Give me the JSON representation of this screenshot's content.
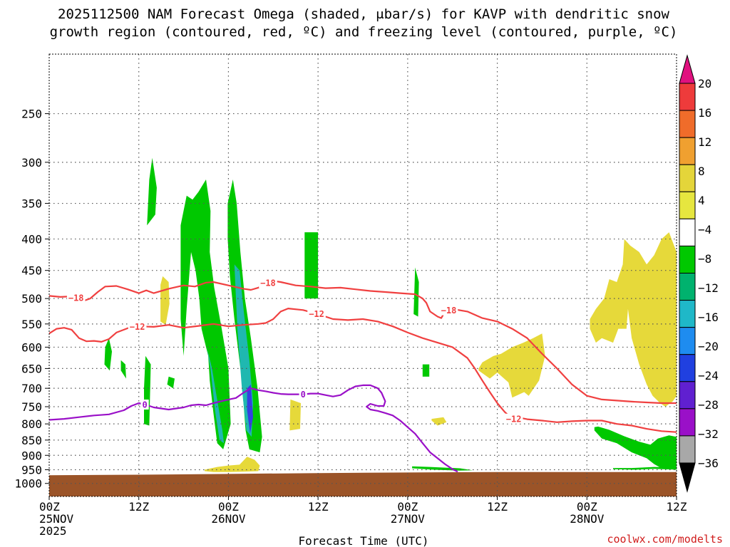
{
  "title_line1": "2025112500 NAM Forecast Omega (shaded, μbar/s) for KAVP with dendritic snow",
  "title_line2": "growth region (contoured, red, ºC) and freezing level (contoured, purple, ºC)",
  "xlabel": "Forecast Time (UTC)",
  "credit": "coolwx.com/modelts",
  "chart_data": {
    "type": "heatmap",
    "y_axis": {
      "label": "",
      "unit": "hPa",
      "inverted": true,
      "scale": "log",
      "ticks": [
        250,
        300,
        350,
        400,
        450,
        500,
        550,
        600,
        650,
        700,
        750,
        800,
        850,
        900,
        950,
        1000
      ],
      "range": [
        1050,
        200
      ]
    },
    "x_axis": {
      "unit": "hours since 2025-11-25 00Z",
      "range": [
        0,
        84
      ],
      "ticks": [
        {
          "h": 0,
          "lines": [
            "00Z",
            "25NOV",
            "2025"
          ]
        },
        {
          "h": 12,
          "lines": [
            "12Z"
          ]
        },
        {
          "h": 24,
          "lines": [
            "00Z",
            "26NOV"
          ]
        },
        {
          "h": 36,
          "lines": [
            "12Z"
          ]
        },
        {
          "h": 48,
          "lines": [
            "00Z",
            "27NOV"
          ]
        },
        {
          "h": 60,
          "lines": [
            "12Z"
          ]
        },
        {
          "h": 72,
          "lines": [
            "00Z",
            "28NOV"
          ]
        },
        {
          "h": 84,
          "lines": [
            "12Z"
          ]
        }
      ]
    },
    "grid": true,
    "colorbar": {
      "labels": [
        "20",
        "16",
        "12",
        "8",
        "4",
        "−4",
        "−8",
        "−12",
        "−16",
        "−20",
        "−24",
        "−28",
        "−32",
        "−36"
      ],
      "colors": [
        "#e0117f",
        "#ee3b3b",
        "#f06c2a",
        "#f0a030",
        "#e4d53a",
        "#e6e63f",
        "#ffffff",
        "#00c800",
        "#00b26e",
        "#1fb8c8",
        "#1e8cf0",
        "#2040e0",
        "#6020d0",
        "#9a10c8",
        "#a8a8a8",
        "#000000"
      ]
    },
    "contours": [
      {
        "name": "−18",
        "color": "#f04040",
        "label_h": [
          3.6,
          29.3,
          53.5
        ],
        "h": [
          0,
          1.5,
          3,
          4,
          4.5,
          5.5,
          6.5,
          7.5,
          9,
          10.5,
          12,
          13,
          14,
          16,
          18,
          19.5,
          21,
          22,
          24,
          26,
          27,
          28,
          29,
          30,
          31,
          33,
          35,
          37,
          39,
          41,
          43,
          45,
          47,
          49,
          50,
          50.5,
          51,
          52,
          52.5,
          53,
          54,
          56,
          58,
          60,
          62,
          64,
          66,
          68,
          70,
          72,
          74,
          76,
          78,
          80,
          82,
          84
        ],
        "p": [
          495,
          497,
          496,
          500,
          505,
          500,
          488,
          478,
          477,
          483,
          490,
          485,
          490,
          482,
          476,
          478,
          471,
          470,
          476,
          482,
          484,
          480,
          473,
          468,
          470,
          476,
          478,
          481,
          480,
          483,
          486,
          488,
          490,
          492,
          500,
          508,
          525,
          535,
          538,
          525,
          520,
          525,
          538,
          545,
          560,
          580,
          615,
          650,
          690,
          720,
          730,
          733,
          736,
          738,
          740,
          740
        ]
      },
      {
        "name": "−12",
        "color": "#f04040",
        "label_h": [
          11.8,
          35.8,
          62.2
        ],
        "h": [
          0,
          1,
          2,
          3,
          4,
          5,
          6,
          7,
          8,
          9,
          10,
          11,
          12,
          14,
          16,
          18,
          20,
          22,
          24,
          26,
          28,
          29,
          30,
          31,
          32,
          34,
          36,
          38,
          40,
          42,
          44,
          46,
          48,
          50,
          52,
          54,
          56,
          57,
          58,
          59,
          60,
          61,
          62,
          63,
          64,
          66,
          68,
          70,
          72,
          74,
          76,
          78,
          80,
          82,
          84
        ],
        "p": [
          570,
          560,
          558,
          562,
          580,
          587,
          586,
          588,
          582,
          568,
          562,
          556,
          555,
          556,
          552,
          558,
          554,
          550,
          555,
          552,
          550,
          548,
          540,
          525,
          519,
          522,
          530,
          540,
          542,
          540,
          545,
          555,
          568,
          580,
          590,
          600,
          625,
          650,
          680,
          710,
          740,
          765,
          785,
          782,
          786,
          790,
          795,
          792,
          790,
          790,
          800,
          805,
          815,
          822,
          825
        ]
      }
    ],
    "freezing_level": {
      "name": "0",
      "color": "#9a10c8",
      "label_h": [
        12.8,
        34
      ],
      "h": [
        0,
        2,
        4,
        6,
        8,
        10,
        11,
        12,
        13,
        14,
        15,
        16,
        17,
        18,
        19,
        20,
        21,
        22,
        23,
        24,
        25,
        26,
        27,
        28,
        29,
        30,
        31,
        32,
        33,
        34,
        35,
        36,
        37,
        38,
        39,
        40,
        41,
        42,
        43,
        44,
        44.5,
        45,
        44.8,
        44,
        43,
        42.5,
        43,
        44,
        45,
        46,
        47,
        48,
        49,
        50,
        51,
        52,
        53,
        54,
        54.7
      ],
      "p": [
        788,
        785,
        780,
        775,
        772,
        760,
        748,
        740,
        745,
        752,
        755,
        758,
        755,
        752,
        746,
        744,
        746,
        740,
        735,
        730,
        726,
        712,
        700,
        705,
        708,
        712,
        715,
        716,
        716,
        716,
        714,
        714,
        718,
        722,
        718,
        705,
        695,
        692,
        692,
        700,
        712,
        735,
        748,
        748,
        742,
        750,
        758,
        762,
        768,
        775,
        790,
        810,
        830,
        860,
        890,
        910,
        930,
        948,
        957
      ]
    },
    "omega_regions": [
      {
        "level": "-4 to -8",
        "h": [
          13.1,
          14.2,
          14.4,
          13.8,
          13.4
        ],
        "p": [
          380,
          365,
          330,
          295,
          320
        ]
      },
      {
        "level": "4 to 8",
        "h": [
          14.9,
          15.6,
          16.1,
          16.0,
          15.2,
          14.9
        ],
        "p": [
          545,
          552,
          510,
          470,
          460,
          475
        ]
      },
      {
        "level": "-4 to -8",
        "h": [
          7.4,
          8.1,
          8.4,
          8.0,
          7.5
        ],
        "p": [
          640,
          655,
          610,
          580,
          600
        ]
      },
      {
        "level": "-4 to -8",
        "h": [
          9.6,
          10.3,
          10.2,
          9.6
        ],
        "p": [
          655,
          675,
          640,
          630
        ]
      },
      {
        "level": "-4 to -8",
        "h": [
          12.7,
          13.4,
          13.6,
          12.9,
          12.7
        ],
        "p": [
          800,
          805,
          640,
          620,
          700
        ]
      },
      {
        "level": "-4 to -8",
        "h": [
          15.8,
          16.6,
          16.8,
          16.0
        ],
        "p": [
          690,
          700,
          675,
          670
        ]
      },
      {
        "level": "-4 to -8",
        "h": [
          17.6,
          18.4,
          19.2,
          20.0,
          21.0,
          21.6,
          21.5,
          22.1,
          23.1,
          24.0,
          24.3,
          23.3,
          22.5,
          22.0,
          21.5,
          21.3,
          20.7,
          20.4,
          20.1,
          19.6,
          19.0,
          18.4,
          18.0,
          17.6
        ],
        "p": [
          380,
          340,
          345,
          335,
          320,
          360,
          420,
          480,
          560,
          650,
          800,
          880,
          860,
          770,
          680,
          620,
          580,
          560,
          500,
          450,
          420,
          520,
          620,
          540
        ]
      },
      {
        "level": "-8 to -16",
        "h": [
          21.1,
          21.8,
          22.4,
          23.2,
          23.4,
          22.8,
          22.2,
          21.6
        ],
        "p": [
          600,
          650,
          720,
          820,
          860,
          850,
          760,
          650
        ]
      },
      {
        "level": "-4 to -8",
        "h": [
          23.9,
          24.6,
          25.1,
          25.6,
          26.2,
          27.0,
          27.9,
          28.5,
          28.2,
          26.8,
          26.3,
          25.8,
          25.4,
          24.8,
          24.2,
          23.9
        ],
        "p": [
          350,
          320,
          350,
          420,
          500,
          580,
          700,
          840,
          890,
          880,
          820,
          680,
          620,
          540,
          460,
          400
        ]
      },
      {
        "level": "-8 to -16",
        "h": [
          24.8,
          25.5,
          26.1,
          26.8,
          27.3,
          27.1,
          26.4,
          25.8,
          25.2
        ],
        "p": [
          440,
          450,
          530,
          630,
          740,
          840,
          820,
          700,
          560
        ]
      },
      {
        "level": "-20 to -32",
        "h": [
          26.5,
          27.0,
          27.3,
          26.9,
          26.5
        ],
        "p": [
          700,
          690,
          780,
          830,
          760
        ]
      },
      {
        "level": "4 to 8",
        "h": [
          20.8,
          22.5,
          24.0,
          25.5,
          26.5,
          27.5,
          28.2,
          28.0,
          26.0,
          24.0,
          22.0,
          20.8
        ],
        "p": [
          950,
          940,
          935,
          932,
          905,
          915,
          935,
          955,
          957,
          958,
          958,
          955
        ]
      },
      {
        "level": "4 to 8",
        "h": [
          32.2,
          33.6,
          33.7,
          32.3
        ],
        "p": [
          820,
          815,
          740,
          730
        ]
      },
      {
        "level": "-4 to -8",
        "h": [
          34.2,
          36.0,
          36.0,
          34.2
        ],
        "p": [
          500,
          500,
          390,
          390
        ]
      },
      {
        "level": "-4 to -8",
        "h": [
          48.8,
          49.4,
          49.5,
          49.0
        ],
        "p": [
          530,
          535,
          470,
          445
        ]
      },
      {
        "level": "-4 to -8",
        "h": [
          50.0,
          50.9,
          50.9,
          50.0
        ],
        "p": [
          670,
          670,
          640,
          640
        ]
      },
      {
        "level": "4 to 8",
        "h": [
          51.2,
          52.0,
          53.2,
          52.8,
          51.2
        ],
        "p": [
          790,
          805,
          795,
          780,
          785
        ]
      },
      {
        "level": "-4 to -8",
        "h": [
          48.6,
          51.5,
          55.0,
          56.7,
          55.0,
          51.0,
          48.6
        ],
        "p": [
          945,
          950,
          953,
          952,
          945,
          940,
          938
        ]
      },
      {
        "level": "4 to 8",
        "h": [
          57.5,
          59.0,
          60.0,
          61.5,
          62.0,
          63.6,
          64.2,
          65.6,
          66.4,
          66.0,
          64.8,
          63.5,
          62.0,
          60.5,
          59.5,
          58.0,
          57.5
        ],
        "p": [
          655,
          675,
          660,
          685,
          725,
          710,
          720,
          680,
          620,
          570,
          580,
          590,
          600,
          615,
          620,
          635,
          650
        ]
      },
      {
        "level": "4 to 8",
        "h": [
          72.4,
          73.2,
          74.0,
          75.5,
          76.2,
          77.3,
          77.5,
          78.0,
          79.0,
          80.0,
          80.8,
          81.8,
          82.5,
          83.5,
          84,
          84,
          83.0,
          82.0,
          81.0,
          80.0,
          79.0,
          77.8,
          77.0,
          76.8,
          76.0,
          75.0,
          74.3,
          73.2,
          72.4
        ],
        "p": [
          560,
          590,
          580,
          590,
          560,
          560,
          520,
          580,
          640,
          690,
          720,
          740,
          750,
          735,
          720,
          420,
          390,
          400,
          425,
          440,
          420,
          410,
          400,
          440,
          470,
          465,
          500,
          520,
          540
        ]
      },
      {
        "level": "-4 to -8",
        "h": [
          73.0,
          74.0,
          76.0,
          78.0,
          80.0,
          81.0,
          82.0,
          84,
          84,
          83.0,
          81.5,
          80.5,
          79.0,
          77.0,
          75.0,
          73.5,
          73.0
        ],
        "p": [
          820,
          845,
          860,
          890,
          910,
          930,
          945,
          945,
          840,
          835,
          845,
          865,
          855,
          838,
          818,
          808,
          810
        ]
      },
      {
        "level": "-4 to -8",
        "h": [
          75.5,
          78.5,
          81.0,
          84,
          84,
          81.0,
          78.0,
          75.5
        ],
        "p": [
          948,
          950,
          947,
          950,
          942,
          940,
          944,
          944
        ]
      }
    ],
    "ground": {
      "color": "#9b5428",
      "p_top": [
        970,
        968,
        965,
        962,
        960,
        958,
        958,
        958
      ],
      "h": [
        0,
        12,
        24,
        36,
        48,
        60,
        72,
        84
      ]
    }
  }
}
